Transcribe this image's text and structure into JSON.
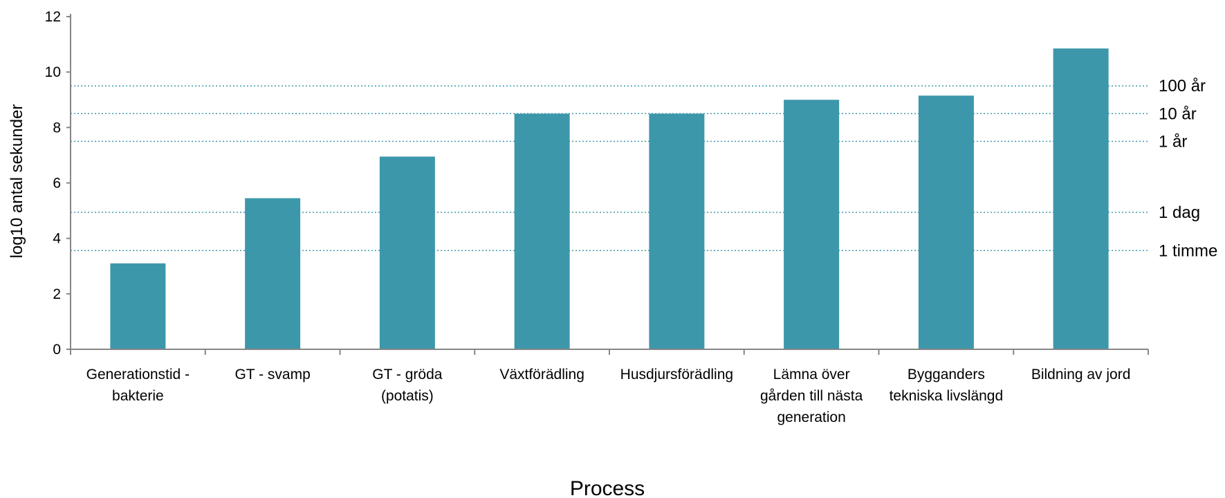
{
  "chart_data": {
    "type": "bar",
    "title": "",
    "xlabel": "Process",
    "ylabel": "log10 antal sekunder",
    "ylim": [
      0,
      12
    ],
    "yticks": [
      "0",
      "2",
      "4",
      "6",
      "8",
      "10",
      "12"
    ],
    "categories": [
      [
        "Generationstid -",
        "bakterie"
      ],
      [
        "GT - svamp"
      ],
      [
        "GT - gröda",
        "(potatis)"
      ],
      [
        "Växtförädling"
      ],
      [
        "Husdjursförädling"
      ],
      [
        "Lämna över",
        "gården till nästa",
        "generation"
      ],
      [
        "Bygganders",
        "tekniska livslängd"
      ],
      [
        "Bildning av jord"
      ]
    ],
    "values": [
      3.1,
      5.45,
      6.95,
      8.5,
      8.5,
      9.0,
      9.15,
      10.85
    ],
    "reference_lines": [
      {
        "label": "100 år",
        "value": 9.5
      },
      {
        "label": "10 år",
        "value": 8.5
      },
      {
        "label": "1 år",
        "value": 7.5
      },
      {
        "label": "1 dag",
        "value": 4.94
      },
      {
        "label": "1 timme",
        "value": 3.56
      }
    ],
    "colors": {
      "bar": "#3d97ab",
      "reference_line": "#3d97ab",
      "axis": "#868686"
    },
    "grid": false
  }
}
